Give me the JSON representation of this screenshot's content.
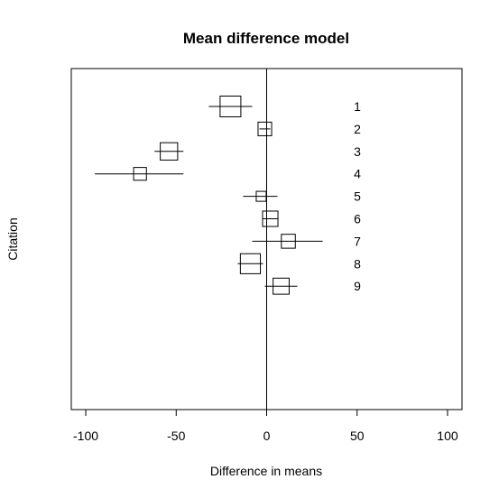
{
  "chart_data": {
    "type": "forest",
    "title": "Mean difference model",
    "xlabel": "Difference in means",
    "ylabel": "Citation",
    "xlim": [
      -108,
      108
    ],
    "xticks": [
      -100,
      -50,
      0,
      50,
      100
    ],
    "xtick_labels": [
      "-100",
      "-50",
      "0",
      "50",
      "100"
    ],
    "reference_line": 0,
    "grid": false,
    "studies": [
      {
        "label": "1",
        "estimate": -20,
        "ci_low": -32,
        "ci_high": -8,
        "weight": 1.0
      },
      {
        "label": "2",
        "estimate": -1,
        "ci_low": -4,
        "ci_high": 2,
        "weight": 0.43
      },
      {
        "label": "3",
        "estimate": -54,
        "ci_low": -62,
        "ci_high": -46,
        "weight": 0.7
      },
      {
        "label": "4",
        "estimate": -70,
        "ci_low": -95,
        "ci_high": -46,
        "weight": 0.38
      },
      {
        "label": "5",
        "estimate": -3,
        "ci_low": -13,
        "ci_high": 6,
        "weight": 0.23
      },
      {
        "label": "6",
        "estimate": 2,
        "ci_low": -2,
        "ci_high": 6,
        "weight": 0.55
      },
      {
        "label": "7",
        "estimate": 12,
        "ci_low": -8,
        "ci_high": 31,
        "weight": 0.45
      },
      {
        "label": "8",
        "estimate": -9,
        "ci_low": -16,
        "ci_high": -2,
        "weight": 0.93
      },
      {
        "label": "9",
        "estimate": 8,
        "ci_low": -1,
        "ci_high": 17,
        "weight": 0.6
      }
    ]
  }
}
